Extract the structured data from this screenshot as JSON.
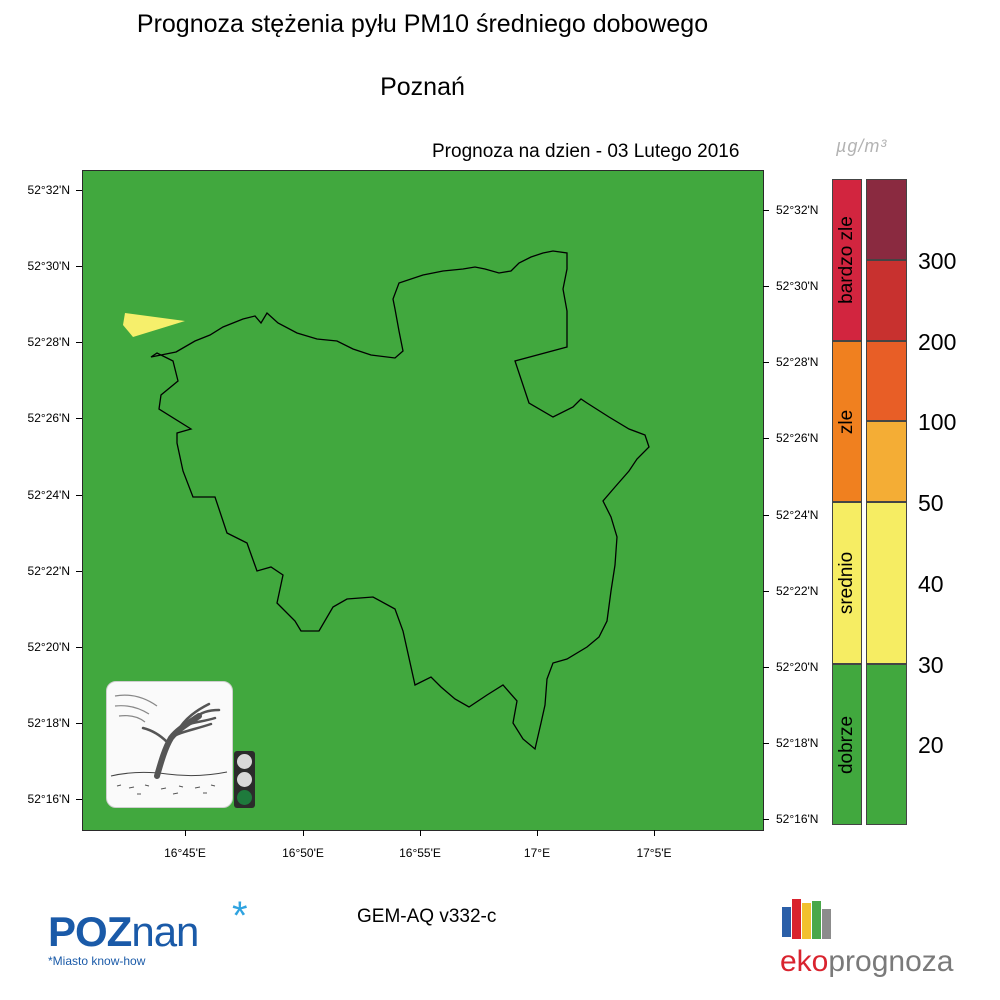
{
  "title": "Prognoza stężenia pyłu PM10 średniego dobowego",
  "city": "Poznań",
  "forecast_date": "Prognoza na dzien -  03 Lutego 2016",
  "unit": "µg/m³",
  "model": "GEM-AQ v332-c",
  "map": {
    "background_color": "#41a83e",
    "hotspot_color": "#f6ef6b",
    "boundary_color": "#000000",
    "lat_labels": [
      "52°32'N",
      "52°30'N",
      "52°28'N",
      "52°26'N",
      "52°24'N",
      "52°22'N",
      "52°20'N",
      "52°18'N",
      "52°16'N"
    ],
    "lon_labels": [
      "16°45'E",
      "16°50'E",
      "16°55'E",
      "17°E",
      "17°5'E"
    ]
  },
  "traffic_light": {
    "colors": [
      "#d8d8d8",
      "#d8d8d8",
      "#1e7a3c"
    ],
    "active": "green"
  },
  "legend": {
    "categories": [
      {
        "label": "bardzo zle",
        "color": "#d2253f"
      },
      {
        "label": "zle",
        "color": "#f0801f"
      },
      {
        "label": "srednio",
        "color": "#f6ed63"
      },
      {
        "label": "dobrze",
        "color": "#41a83e"
      }
    ],
    "value_band_colors": [
      "#8a2a40",
      "#c8312f",
      "#e85e26",
      "#f4ad35",
      "#f6ed63",
      "#41a83e"
    ],
    "scale_values": [
      "300",
      "200",
      "100",
      "50",
      "40",
      "30",
      "20"
    ]
  },
  "logos": {
    "poznan_word_bold": "POZ",
    "poznan_word_regular": "nan",
    "poznan_star": "*",
    "poznan_tagline": "*Miasto know-how",
    "eko_red": "eko",
    "eko_grey": "prognoza",
    "eko_bar_colors": [
      "#2b5fa8",
      "#d9232e",
      "#f2c12e",
      "#4aa84a",
      "#8c8c8c"
    ]
  }
}
